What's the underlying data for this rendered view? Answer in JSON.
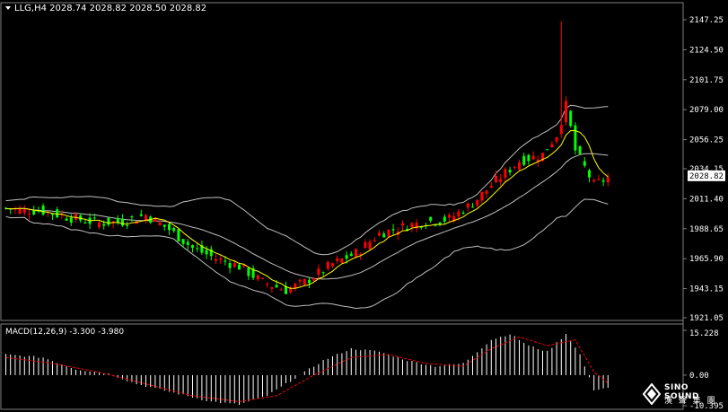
{
  "header": {
    "symbol": "LLG,H4",
    "ohlc": "2028.74 2028.82 2028.50 2028.82"
  },
  "price_axis": {
    "ticks": [
      "2147.25",
      "2124.50",
      "2101.75",
      "2079.00",
      "2056.25",
      "2034.15",
      "2011.40",
      "1988.65",
      "1965.90",
      "1943.15",
      "1921.05"
    ],
    "current_price": "2028.82"
  },
  "macd": {
    "label": "MACD(12,26,9) -3.300 -3.980",
    "ticks": [
      "15.228",
      "0.00",
      "-10.395"
    ]
  },
  "logo": {
    "name": "SINO SOUND",
    "subtitle": "漢 聲 集 團"
  },
  "colors": {
    "background": "#000000",
    "up_candle": "#ff0000",
    "down_candle": "#00ff00",
    "bollinger": "#bfbfbf",
    "ma_line": "#ffff00",
    "macd_hist": "#ffffff",
    "macd_signal": "#ff0000"
  },
  "chart_data": {
    "type": "candlestick",
    "price_ylim": [
      1921.05,
      2147.25
    ],
    "macd_ylim": [
      -10.395,
      15.228
    ],
    "candle_count": 130,
    "close_path": [
      [
        0,
        2004
      ],
      [
        8,
        2002
      ],
      [
        15,
        1996
      ],
      [
        20,
        1993
      ],
      [
        25,
        1994
      ],
      [
        30,
        1999
      ],
      [
        35,
        1988
      ],
      [
        40,
        1974
      ],
      [
        45,
        1966
      ],
      [
        50,
        1960
      ],
      [
        55,
        1948
      ],
      [
        60,
        1942
      ],
      [
        64,
        1948
      ],
      [
        70,
        1962
      ],
      [
        75,
        1970
      ],
      [
        80,
        1985
      ],
      [
        85,
        1990
      ],
      [
        90,
        1994
      ],
      [
        95,
        1996
      ],
      [
        100,
        2008
      ],
      [
        105,
        2025
      ],
      [
        110,
        2040
      ],
      [
        115,
        2045
      ],
      [
        118,
        2060
      ],
      [
        120,
        2082
      ],
      [
        122,
        2048
      ],
      [
        126,
        2022
      ],
      [
        130,
        2029
      ]
    ],
    "macd_hist_path": [
      [
        0,
        7
      ],
      [
        8,
        6
      ],
      [
        15,
        2
      ],
      [
        22,
        0.5
      ],
      [
        28,
        -3
      ],
      [
        36,
        -6
      ],
      [
        44,
        -9
      ],
      [
        50,
        -10
      ],
      [
        56,
        -7
      ],
      [
        62,
        -1
      ],
      [
        68,
        5
      ],
      [
        74,
        9
      ],
      [
        80,
        8
      ],
      [
        86,
        5
      ],
      [
        92,
        3
      ],
      [
        98,
        4
      ],
      [
        104,
        12
      ],
      [
        108,
        14
      ],
      [
        112,
        10
      ],
      [
        116,
        8
      ],
      [
        120,
        14
      ],
      [
        123,
        7
      ],
      [
        126,
        -5
      ],
      [
        130,
        -4
      ]
    ],
    "macd_signal_path": [
      [
        0,
        6
      ],
      [
        10,
        4
      ],
      [
        20,
        1
      ],
      [
        30,
        -3
      ],
      [
        40,
        -7
      ],
      [
        50,
        -9
      ],
      [
        58,
        -7
      ],
      [
        66,
        0
      ],
      [
        74,
        6
      ],
      [
        82,
        7
      ],
      [
        90,
        4
      ],
      [
        98,
        3
      ],
      [
        104,
        9
      ],
      [
        110,
        13
      ],
      [
        116,
        10
      ],
      [
        122,
        12
      ],
      [
        126,
        1
      ],
      [
        130,
        -4
      ]
    ]
  }
}
